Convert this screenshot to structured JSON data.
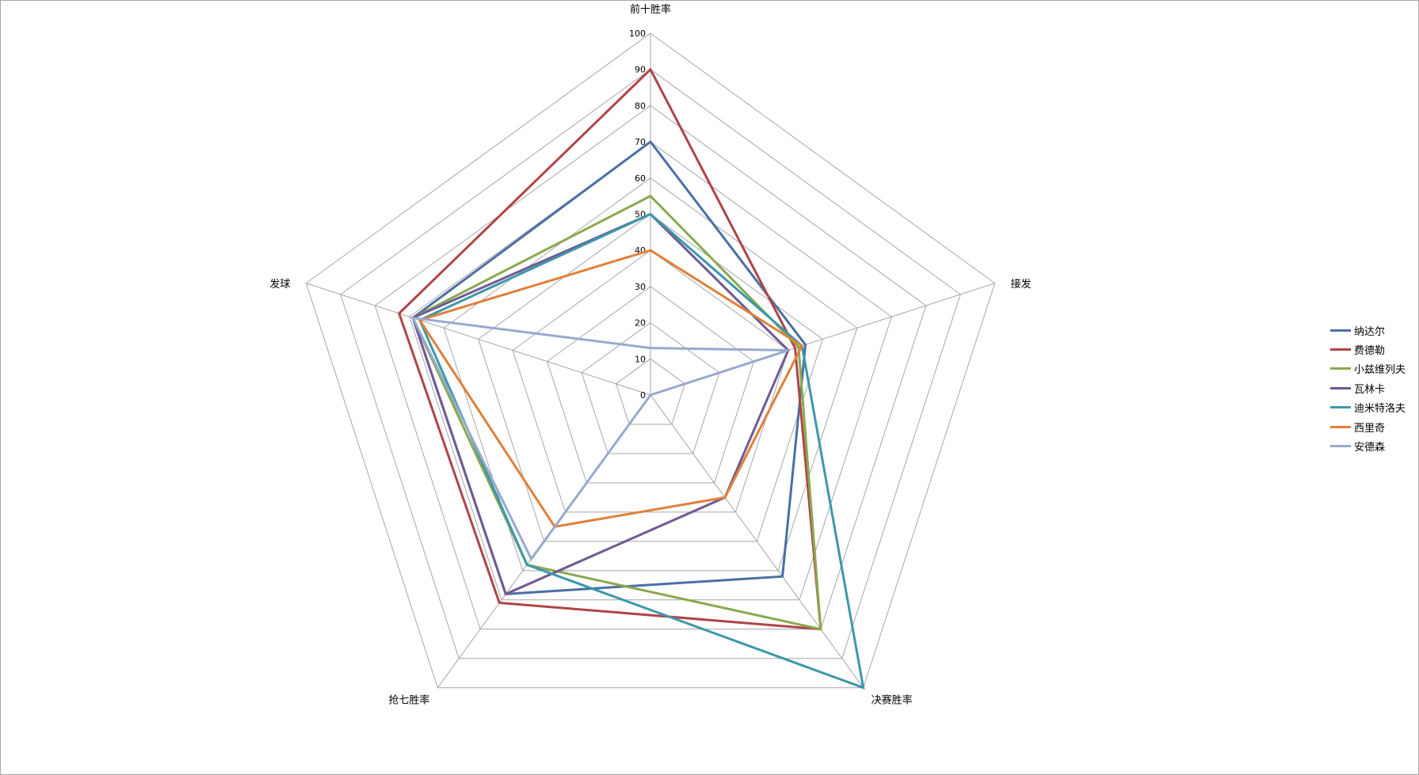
{
  "chart_data": {
    "type": "radar",
    "categories": [
      "前十胜率",
      "接发",
      "决赛胜率",
      "抢七胜率",
      "发球"
    ],
    "r_ticks": [
      0,
      10,
      20,
      30,
      40,
      50,
      60,
      70,
      80,
      90,
      100
    ],
    "rlim": [
      0,
      100
    ],
    "grid": true,
    "legend_position": "right",
    "series": [
      {
        "name": "纳达尔",
        "color": "#4a6fa5",
        "values": [
          70,
          45,
          62,
          68,
          69
        ]
      },
      {
        "name": "费德勒",
        "color": "#b04446",
        "values": [
          90,
          42,
          80,
          71,
          73
        ]
      },
      {
        "name": "小兹维列夫",
        "color": "#8aa94e",
        "values": [
          55,
          43,
          80,
          58,
          69
        ]
      },
      {
        "name": "瓦林卡",
        "color": "#705a93",
        "values": [
          50,
          40,
          35,
          68,
          69
        ]
      },
      {
        "name": "迪米特洛夫",
        "color": "#3d97ab",
        "values": [
          50,
          44,
          100,
          58,
          67
        ]
      },
      {
        "name": "西里奇",
        "color": "#e0803a",
        "values": [
          40,
          44,
          35,
          45,
          67
        ]
      },
      {
        "name": "安德森",
        "color": "#97aacd",
        "values": [
          13,
          40,
          0,
          56,
          69
        ]
      }
    ]
  }
}
